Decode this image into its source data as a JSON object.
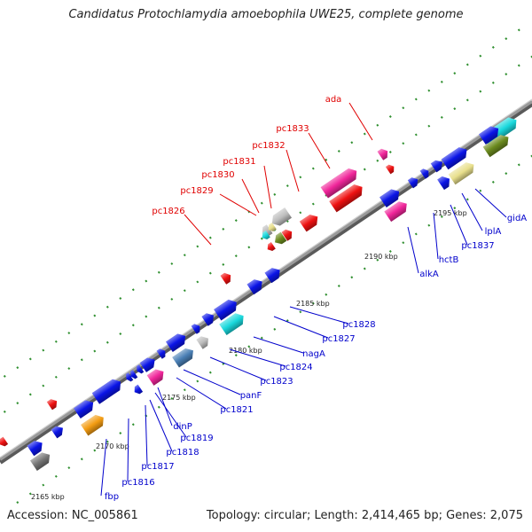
{
  "title": "Candidatus Protochlamydia amoebophila UWE25, complete genome",
  "accession": "Accession: NC_005861",
  "topology": "Topology: circular; Length: 2,414,465 bp; Genes: 2,075",
  "ticks": [
    "2165 kbp",
    "2170 kbp",
    "2175 kbp",
    "2180 kbp",
    "2185 kbp",
    "2190 kbp",
    "2195 kbp"
  ],
  "genes_top": [
    "ada",
    "pc1833",
    "pc1832",
    "pc1831",
    "pc1830",
    "pc1829",
    "pc1826"
  ],
  "genes_bottom": [
    "pc1828",
    "pc1827",
    "nagA",
    "pc1824",
    "pc1823",
    "panF",
    "pc1821",
    "dinP",
    "pc1819",
    "pc1818",
    "pc1817",
    "pc1816",
    "fbp",
    "alkA",
    "hctB",
    "pc1837",
    "lplA",
    "gidA"
  ],
  "colors": {
    "backbone": "#8a8a8a",
    "tick_dots": "#2f8f2f",
    "label_top": "#e00000",
    "label_bottom": "#0000cc",
    "cds_forward": "#0a14e6",
    "rna": "#ee1111",
    "pink": "#f0259a",
    "cyan": "#19d8dc",
    "olive": "#6b8a1e",
    "orange": "#f39c12",
    "gray": "#777777",
    "steel": "#4a7fb5",
    "khaki": "#e8df8c",
    "silver": "#bdbdbd"
  }
}
